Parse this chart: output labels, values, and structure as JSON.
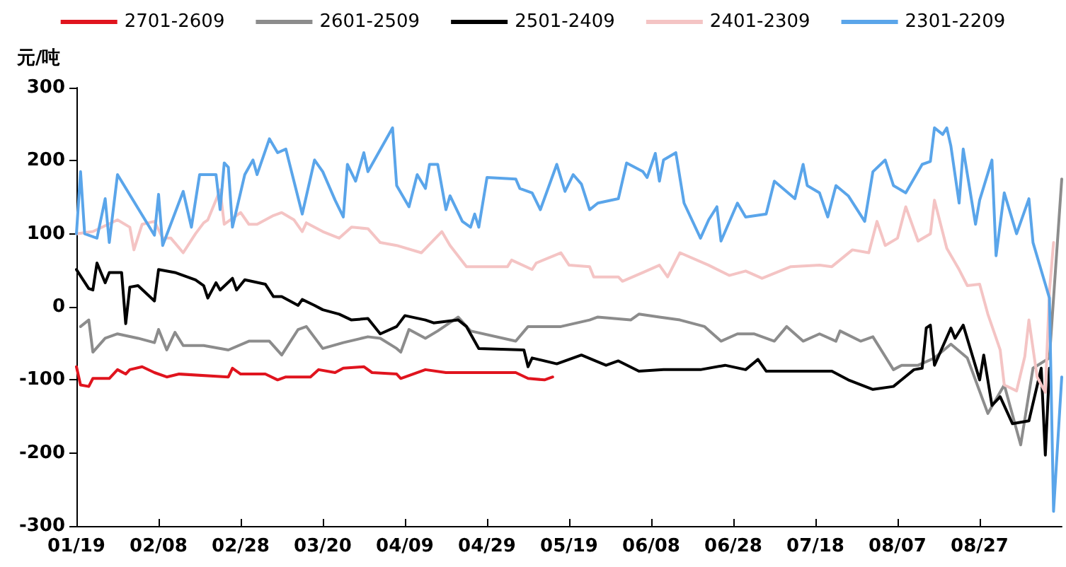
{
  "chart_data": {
    "type": "line",
    "ylabel": "元/吨",
    "legend": "top",
    "xlim": [
      "--01-19",
      "--09-16"
    ],
    "xticks": [
      {
        "value": "--01-19",
        "label": "01/19"
      },
      {
        "value": "--02-08",
        "label": "02/08"
      },
      {
        "value": "--02-28",
        "label": "02/28"
      },
      {
        "value": "--03-20",
        "label": "03/20"
      },
      {
        "value": "--04-09",
        "label": "04/09"
      },
      {
        "value": "--04-29",
        "label": "04/29"
      },
      {
        "value": "--05-19",
        "label": "05/19"
      },
      {
        "value": "--06-08",
        "label": "06/08"
      },
      {
        "value": "--06-28",
        "label": "06/28"
      },
      {
        "value": "--07-18",
        "label": "07/18"
      },
      {
        "value": "--08-07",
        "label": "08/07"
      },
      {
        "value": "--08-27",
        "label": "08/27"
      }
    ],
    "ylim": [
      -300,
      300
    ],
    "yticks": [
      -300,
      -200,
      -100,
      0,
      100,
      200,
      300
    ],
    "series": [
      {
        "name": "2701-2609",
        "color": "#e0141e",
        "x": [
          "--01-19",
          "--01-20",
          "--01-22",
          "--01-23",
          "--01-27",
          "--01-29",
          "--01-31",
          "--02-01",
          "--02-04",
          "--02-07",
          "--02-10",
          "--02-13",
          "--02-25",
          "--02-26",
          "--02-28",
          "--03-06",
          "--03-09",
          "--03-11",
          "--03-17",
          "--03-19",
          "--03-23",
          "--03-25",
          "--03-30",
          "--04-01",
          "--04-07",
          "--04-08",
          "--04-14",
          "--04-19",
          "--04-25",
          "--05-06",
          "--05-09",
          "--05-13",
          "--05-15"
        ],
        "values": [
          -82,
          -107,
          -109,
          -98,
          -98,
          -86,
          -92,
          -86,
          -82,
          -90,
          -96,
          -92,
          -96,
          -84,
          -92,
          -92,
          -100,
          -96,
          -96,
          -86,
          -90,
          -84,
          -82,
          -90,
          -92,
          -98,
          -86,
          -90,
          -90,
          -90,
          -98,
          -100,
          -96
        ]
      },
      {
        "name": "2601-2509",
        "color": "#8c8c8c",
        "x": [
          "--01-20",
          "--01-22",
          "--01-23",
          "--01-26",
          "--01-29",
          "--02-03",
          "--02-07",
          "--02-08",
          "--02-10",
          "--02-12",
          "--02-14",
          "--02-19",
          "--02-25",
          "--03-02",
          "--03-07",
          "--03-10",
          "--03-14",
          "--03-16",
          "--03-20",
          "--03-25",
          "--03-31",
          "--04-03",
          "--04-07",
          "--04-08",
          "--04-10",
          "--04-14",
          "--04-17",
          "--04-22",
          "--04-25",
          "--05-06",
          "--05-09",
          "--05-17",
          "--05-24",
          "--05-26",
          "--06-03",
          "--06-05",
          "--06-10",
          "--06-15",
          "--06-21",
          "--06-25",
          "--06-29",
          "--07-03",
          "--07-08",
          "--07-11",
          "--07-15",
          "--07-19",
          "--07-23",
          "--07-24",
          "--07-29",
          "--08-01",
          "--08-06",
          "--08-08",
          "--08-12",
          "--08-16",
          "--08-20",
          "--08-24",
          "--08-29",
          "--09-02",
          "--09-06",
          "--09-09",
          "--09-13",
          "--09-16"
        ],
        "values": [
          -27,
          -18,
          -62,
          -43,
          -37,
          -43,
          -49,
          -31,
          -59,
          -35,
          -53,
          -53,
          -59,
          -47,
          -47,
          -66,
          -31,
          -27,
          -57,
          -49,
          -41,
          -43,
          -57,
          -62,
          -31,
          -43,
          -33,
          -14,
          -33,
          -47,
          -27,
          -27,
          -18,
          -14,
          -18,
          -10,
          -14,
          -18,
          -27,
          -47,
          -37,
          -37,
          -47,
          -27,
          -47,
          -37,
          -47,
          -33,
          -47,
          -41,
          -86,
          -80,
          -80,
          -70,
          -51,
          -70,
          -146,
          -107,
          -189,
          -84,
          -70,
          175
        ]
      },
      {
        "name": "2501-2409",
        "color": "#000000",
        "x": [
          "--01-19",
          "--01-22",
          "--01-23",
          "--01-24",
          "--01-26",
          "--01-27",
          "--01-30",
          "--01-31",
          "--02-01",
          "--02-03",
          "--02-07",
          "--02-08",
          "--02-12",
          "--02-17",
          "--02-19",
          "--02-20",
          "--02-22",
          "--02-23",
          "--02-26",
          "--02-27",
          "--03-01",
          "--03-06",
          "--03-08",
          "--03-10",
          "--03-14",
          "--03-15",
          "--03-18",
          "--03-20",
          "--03-24",
          "--03-27",
          "--03-31",
          "--04-03",
          "--04-07",
          "--04-09",
          "--04-14",
          "--04-16",
          "--04-22",
          "--04-24",
          "--04-27",
          "--05-08",
          "--05-09",
          "--05-10",
          "--05-16",
          "--05-22",
          "--05-28",
          "--05-31",
          "--06-05",
          "--06-11",
          "--06-20",
          "--06-26",
          "--07-01",
          "--07-04",
          "--07-06",
          "--07-22",
          "--07-26",
          "--08-01",
          "--08-06",
          "--08-11",
          "--08-13",
          "--08-14",
          "--08-15",
          "--08-16",
          "--08-20",
          "--08-21",
          "--08-23",
          "--08-27",
          "--08-28",
          "--08-30",
          "--09-01",
          "--09-04",
          "--09-08",
          "--09-11",
          "--09-12",
          "--09-13"
        ],
        "values": [
          51,
          25,
          23,
          60,
          33,
          47,
          47,
          -23,
          27,
          29,
          8,
          51,
          47,
          37,
          29,
          12,
          33,
          23,
          39,
          23,
          37,
          31,
          14,
          14,
          2,
          10,
          2,
          -4,
          -10,
          -18,
          -16,
          -37,
          -27,
          -12,
          -18,
          -22,
          -18,
          -27,
          -57,
          -59,
          -82,
          -70,
          -78,
          -66,
          -80,
          -74,
          -88,
          -86,
          -86,
          -80,
          -86,
          -72,
          -88,
          -88,
          -100,
          -113,
          -109,
          -86,
          -84,
          -29,
          -25,
          -80,
          -29,
          -43,
          -25,
          -100,
          -66,
          -135,
          -123,
          -160,
          -156,
          -84,
          -203,
          -84
        ]
      },
      {
        "name": "2401-2309",
        "color": "#f4c4c4",
        "x": [
          "--01-19",
          "--01-23",
          "--01-29",
          "--02-01",
          "--02-02",
          "--02-04",
          "--02-07",
          "--02-09",
          "--02-11",
          "--02-14",
          "--02-17",
          "--02-19",
          "--02-20",
          "--02-23",
          "--02-24",
          "--02-28",
          "--03-02",
          "--03-04",
          "--03-08",
          "--03-10",
          "--03-13",
          "--03-15",
          "--03-16",
          "--03-20",
          "--03-24",
          "--03-27",
          "--03-31",
          "--04-03",
          "--04-07",
          "--04-13",
          "--04-18",
          "--04-20",
          "--04-24",
          "--05-04",
          "--05-05",
          "--05-10",
          "--05-11",
          "--05-17",
          "--05-19",
          "--05-24",
          "--05-25",
          "--05-31",
          "--06-01",
          "--06-06",
          "--06-10",
          "--06-12",
          "--06-15",
          "--06-22",
          "--06-27",
          "--07-01",
          "--07-05",
          "--07-12",
          "--07-19",
          "--07-22",
          "--07-27",
          "--07-31",
          "--08-02",
          "--08-04",
          "--08-07",
          "--08-09",
          "--08-12",
          "--08-15",
          "--08-16",
          "--08-19",
          "--08-22",
          "--08-24",
          "--08-27",
          "--08-29",
          "--09-01",
          "--09-02",
          "--09-05",
          "--09-07",
          "--09-08",
          "--09-10",
          "--09-12",
          "--09-13",
          "--09-14"
        ],
        "values": [
          100,
          103,
          119,
          109,
          78,
          113,
          117,
          94,
          94,
          74,
          100,
          115,
          119,
          160,
          113,
          129,
          113,
          113,
          125,
          129,
          119,
          103,
          115,
          103,
          94,
          109,
          107,
          88,
          84,
          74,
          103,
          84,
          55,
          55,
          64,
          51,
          60,
          74,
          57,
          55,
          41,
          41,
          35,
          47,
          57,
          41,
          74,
          57,
          43,
          49,
          39,
          55,
          57,
          55,
          78,
          74,
          117,
          84,
          94,
          137,
          90,
          100,
          146,
          80,
          51,
          29,
          31,
          -10,
          -59,
          -107,
          -115,
          -68,
          -18,
          -96,
          -117,
          21,
          88
        ]
      },
      {
        "name": "2301-2209",
        "color": "#5aa5ea",
        "x": [
          "--01-19",
          "--01-20",
          "--01-21",
          "--01-24",
          "--01-26",
          "--01-27",
          "--01-29",
          "--02-07",
          "--02-08",
          "--02-09",
          "--02-14",
          "--02-16",
          "--02-18",
          "--02-22",
          "--02-23",
          "--02-24",
          "--02-25",
          "--02-26",
          "--03-01",
          "--03-03",
          "--03-04",
          "--03-07",
          "--03-09",
          "--03-11",
          "--03-15",
          "--03-18",
          "--03-20",
          "--03-23",
          "--03-25",
          "--03-26",
          "--03-28",
          "--03-30",
          "--03-31",
          "--04-06",
          "--04-07",
          "--04-10",
          "--04-12",
          "--04-14",
          "--04-15",
          "--04-17",
          "--04-19",
          "--04-20",
          "--04-23",
          "--04-25",
          "--04-26",
          "--04-27",
          "--04-29",
          "--05-06",
          "--05-07",
          "--05-10",
          "--05-12",
          "--05-16",
          "--05-18",
          "--05-20",
          "--05-22",
          "--05-24",
          "--05-26",
          "--05-31",
          "--06-02",
          "--06-06",
          "--06-07",
          "--06-09",
          "--06-10",
          "--06-11",
          "--06-14",
          "--06-16",
          "--06-20",
          "--06-22",
          "--06-24",
          "--06-25",
          "--06-29",
          "--07-01",
          "--07-06",
          "--07-08",
          "--07-13",
          "--07-15",
          "--07-16",
          "--07-19",
          "--07-21",
          "--07-23",
          "--07-26",
          "--07-30",
          "--08-01",
          "--08-04",
          "--08-06",
          "--08-09",
          "--08-13",
          "--08-15",
          "--08-16",
          "--08-18",
          "--08-19",
          "--08-20",
          "--08-22",
          "--08-23",
          "--08-26",
          "--08-27",
          "--08-30",
          "--08-31",
          "--09-02",
          "--09-05",
          "--09-08",
          "--09-09",
          "--09-12",
          "--09-13",
          "--09-14",
          "--09-16"
        ],
        "values": [
          100,
          185,
          100,
          94,
          148,
          88,
          181,
          98,
          154,
          84,
          158,
          109,
          181,
          181,
          133,
          197,
          191,
          109,
          181,
          201,
          181,
          230,
          211,
          216,
          127,
          201,
          185,
          146,
          123,
          195,
          172,
          211,
          185,
          245,
          166,
          137,
          181,
          162,
          195,
          195,
          133,
          152,
          117,
          109,
          127,
          109,
          177,
          175,
          162,
          156,
          133,
          195,
          158,
          181,
          168,
          133,
          142,
          148,
          197,
          185,
          177,
          210,
          172,
          201,
          211,
          142,
          94,
          119,
          137,
          90,
          142,
          123,
          127,
          172,
          148,
          195,
          166,
          156,
          123,
          166,
          152,
          117,
          185,
          201,
          166,
          156,
          195,
          199,
          245,
          236,
          245,
          220,
          142,
          216,
          113,
          146,
          201,
          70,
          156,
          100,
          148,
          88,
          31,
          12,
          -280,
          -96
        ]
      }
    ]
  }
}
